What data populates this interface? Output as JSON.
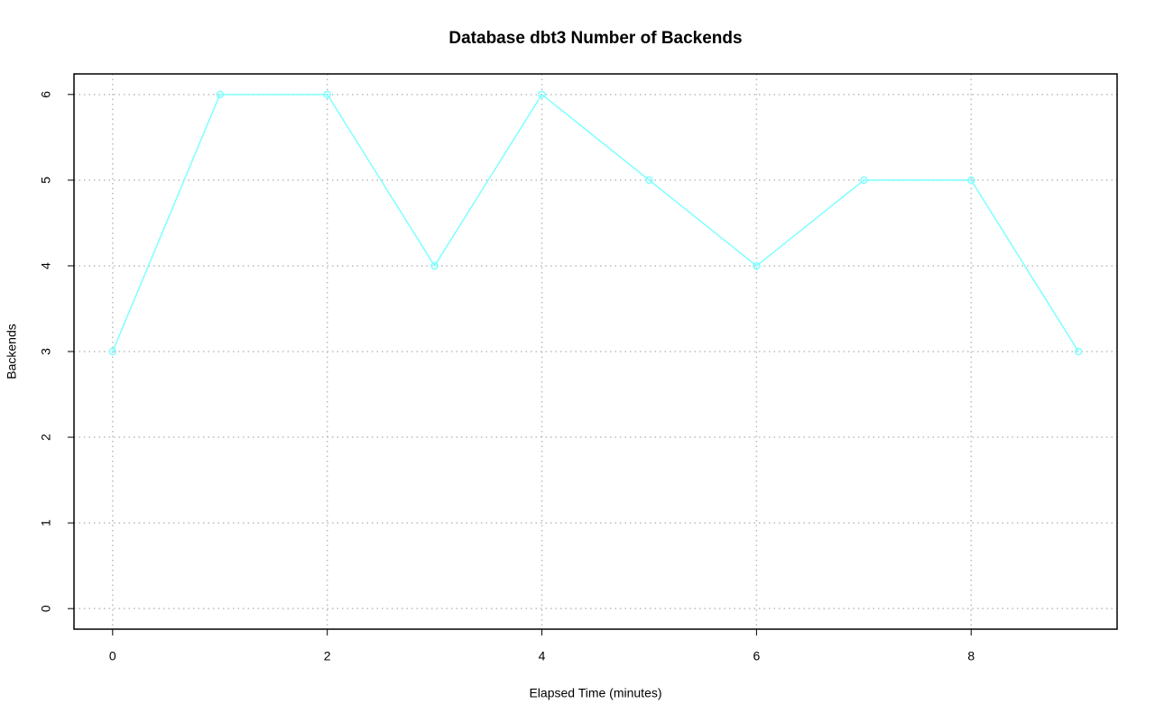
{
  "chart_data": {
    "type": "line",
    "title": "Database dbt3 Number of Backends",
    "x_label": "Elapsed Time (minutes)",
    "y_label": "Backends",
    "x": [
      0,
      1,
      2,
      3,
      4,
      5,
      6,
      7,
      8,
      9
    ],
    "series": [
      {
        "name": "Backends",
        "color": "#7fffff",
        "values": [
          3,
          6,
          6,
          4,
          6,
          5,
          4,
          5,
          5,
          3
        ]
      }
    ],
    "xlim": [
      -0.36,
      9.36
    ],
    "ylim": [
      -0.24,
      6.24
    ],
    "xticks": [
      0,
      2,
      4,
      6,
      8
    ],
    "yticks": [
      0,
      1,
      2,
      3,
      4,
      5,
      6
    ],
    "grid": true
  }
}
